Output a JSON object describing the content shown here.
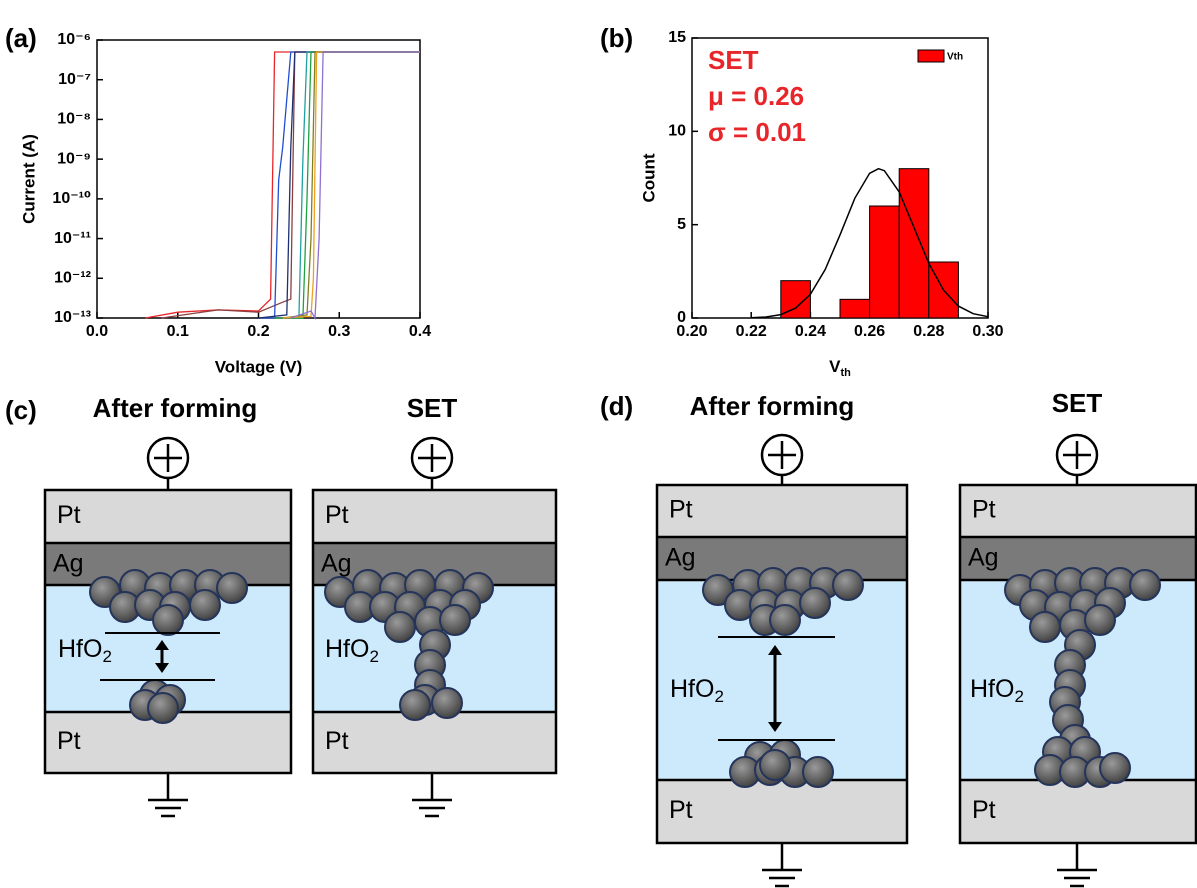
{
  "chart_data": [
    {
      "type": "line",
      "panel_label": "(a)",
      "xlabel": "Voltage (V)",
      "ylabel": "Current (A)",
      "log_y": true,
      "xlim": [
        0,
        0.4
      ],
      "ylim": [
        1e-13,
        1e-06
      ],
      "xticks": [
        {
          "value": 0,
          "label": "0.0"
        },
        0.1,
        0.2,
        0.3,
        0.4
      ],
      "yticks": [
        {
          "value": 1e-13,
          "label": "10⁻¹³"
        },
        {
          "value": 1e-12,
          "label": "10⁻¹²"
        },
        {
          "value": 1e-11,
          "label": "10⁻¹¹"
        },
        {
          "value": 1e-10,
          "label": "10⁻¹⁰"
        },
        {
          "value": 1e-09,
          "label": "10⁻⁹"
        },
        {
          "value": 1e-08,
          "label": "10⁻⁸"
        },
        {
          "value": 1e-07,
          "label": "10⁻⁷"
        },
        {
          "value": 1e-06,
          "label": "10⁻⁶"
        }
      ],
      "series": [
        {
          "color": "#e8262a",
          "x": [
            0.06,
            0.1,
            0.15,
            0.2,
            0.215,
            0.22,
            0.4
          ],
          "values": [
            1e-13,
            1.4e-13,
            1.6e-13,
            1.5e-13,
            3e-13,
            5e-07,
            5e-07
          ]
        },
        {
          "color": "#8a4040",
          "x": [
            0.08,
            0.15,
            0.2,
            0.23,
            0.24,
            0.245,
            0.4
          ],
          "values": [
            1e-13,
            1.6e-13,
            1.4e-13,
            2.5e-13,
            3e-13,
            5e-07,
            5e-07
          ]
        },
        {
          "color": "#1f4fd0",
          "x": [
            0.2,
            0.22,
            0.225,
            0.23,
            0.24,
            0.4
          ],
          "values": [
            1e-13,
            1e-13,
            3e-10,
            2e-09,
            5e-07,
            5e-07
          ]
        },
        {
          "color": "#203070",
          "x": [
            0.2,
            0.235,
            0.24,
            0.245,
            0.4
          ],
          "values": [
            1e-13,
            1.2e-13,
            2e-09,
            5e-07,
            5e-07
          ]
        },
        {
          "color": "#20a0a0",
          "x": [
            0.22,
            0.25,
            0.255,
            0.26,
            0.4
          ],
          "values": [
            1e-13,
            1e-13,
            1e-09,
            5e-07,
            5e-07
          ]
        },
        {
          "color": "#20a040",
          "x": [
            0.22,
            0.255,
            0.26,
            0.265,
            0.4
          ],
          "values": [
            1e-13,
            1e-13,
            1e-10,
            5e-07,
            5e-07
          ]
        },
        {
          "color": "#808020",
          "x": [
            0.23,
            0.26,
            0.265,
            0.27,
            0.4
          ],
          "values": [
            1e-13,
            1.2e-13,
            1e-11,
            5e-07,
            5e-07
          ]
        },
        {
          "color": "#f0a020",
          "x": [
            0.23,
            0.265,
            0.268,
            0.272,
            0.4
          ],
          "values": [
            1e-13,
            1.1e-13,
            1e-12,
            5e-07,
            5e-07
          ]
        },
        {
          "color": "#9070d0",
          "x": [
            0.24,
            0.265,
            0.27,
            0.275,
            0.28,
            0.4
          ],
          "values": [
            1e-13,
            1.5e-13,
            1e-13,
            1e-11,
            5e-07,
            5e-07
          ]
        }
      ]
    },
    {
      "type": "histogram",
      "panel_label": "(b)",
      "xlabel": {
        "main": "V",
        "sub": "th"
      },
      "ylabel": "Count",
      "xlim": [
        0.2,
        0.3
      ],
      "ylim": [
        0,
        15
      ],
      "xticks": [
        {
          "value": 0.2,
          "label": "0.20"
        },
        {
          "value": 0.22,
          "label": "0.22"
        },
        {
          "value": 0.24,
          "label": "0.24"
        },
        {
          "value": 0.26,
          "label": "0.26"
        },
        {
          "value": 0.28,
          "label": "0.28"
        },
        {
          "value": 0.3,
          "label": "0.30"
        }
      ],
      "yticks": [
        0,
        5,
        10,
        15
      ],
      "bins": [
        0.23,
        0.24,
        0.25,
        0.26,
        0.27,
        0.28,
        0.29
      ],
      "series": [
        {
          "name": "Vth",
          "color": "#ff0000",
          "values": [
            2,
            0,
            1,
            6,
            8,
            3
          ]
        }
      ],
      "fit": {
        "color": "#000000",
        "x": [
          0.22,
          0.225,
          0.23,
          0.235,
          0.24,
          0.245,
          0.25,
          0.255,
          0.26,
          0.263,
          0.265,
          0.27,
          0.275,
          0.28,
          0.285,
          0.29,
          0.295,
          0.3
        ],
        "values": [
          0.013,
          0.053,
          0.18,
          0.53,
          1.27,
          2.6,
          4.45,
          6.41,
          7.75,
          8,
          7.89,
          6.75,
          4.85,
          2.93,
          1.49,
          0.64,
          0.23,
          0.07
        ]
      },
      "annotations": [
        "SET",
        "μ = 0.26",
        "σ = 0.01"
      ]
    }
  ],
  "diagrams": [
    {
      "panel_label": "(c)",
      "devices": [
        {
          "title": "After forming",
          "top": "Pt",
          "middle": "Ag",
          "oxide": {
            "main": "HfO",
            "sub": "2"
          },
          "bottom": "Pt"
        },
        {
          "title": "SET",
          "top": "Pt",
          "middle": "Ag",
          "oxide": {
            "main": "HfO",
            "sub": "2"
          },
          "bottom": "Pt"
        }
      ]
    },
    {
      "panel_label": "(d)",
      "devices": [
        {
          "title": "After forming",
          "top": "Pt",
          "middle": "Ag",
          "oxide": {
            "main": "HfO",
            "sub": "2"
          },
          "bottom": "Pt"
        },
        {
          "title": "SET",
          "top": "Pt",
          "middle": "Ag",
          "oxide": {
            "main": "HfO",
            "sub": "2"
          },
          "bottom": "Pt"
        }
      ]
    }
  ]
}
